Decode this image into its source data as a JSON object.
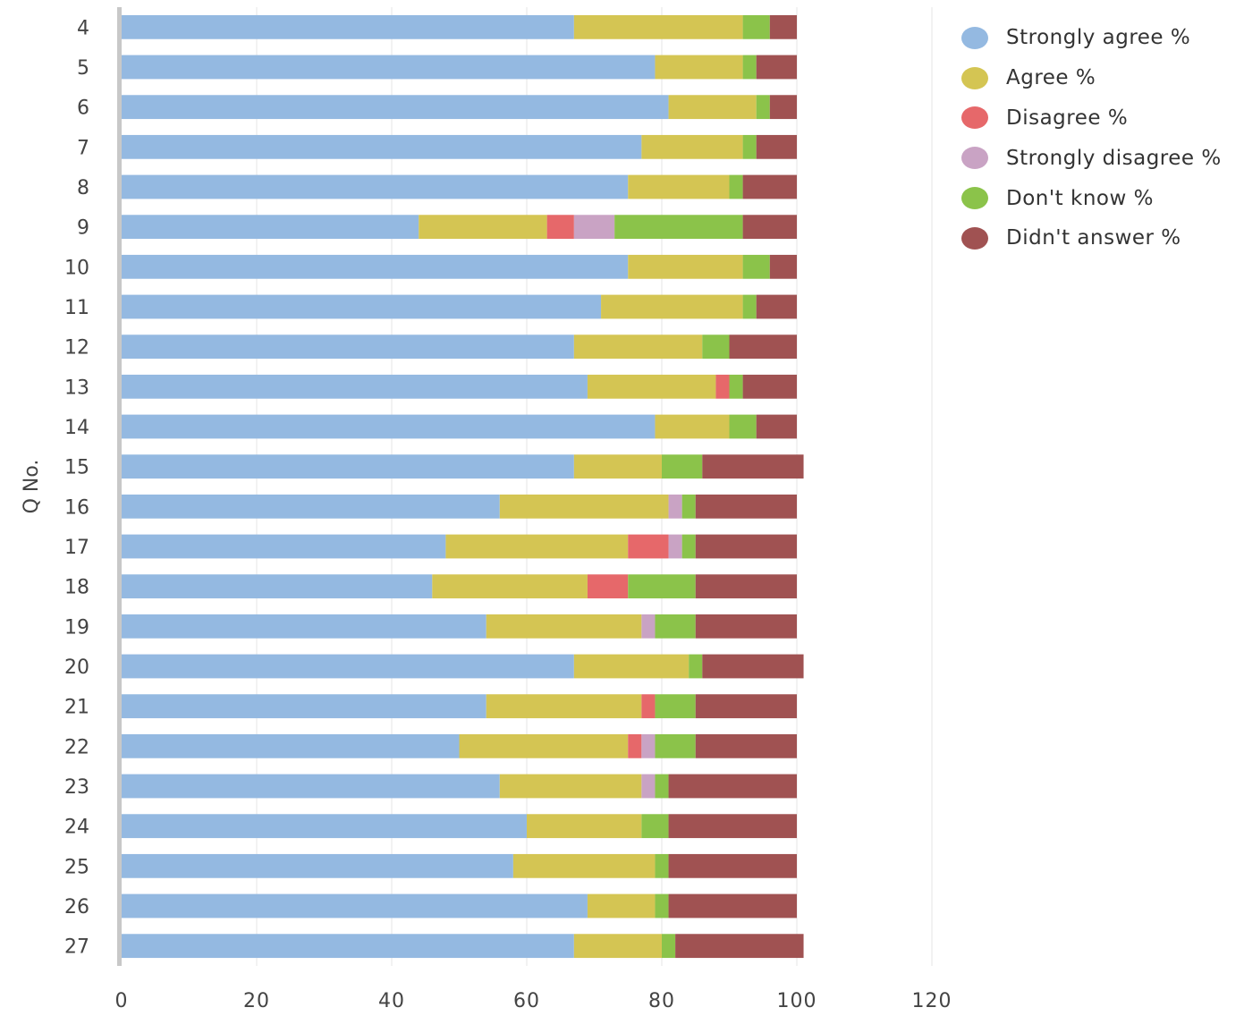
{
  "chart_data": {
    "type": "bar",
    "orientation": "horizontal",
    "stacked": true,
    "ylabel": "Q No.",
    "xlabel": "",
    "xlim": [
      0,
      120
    ],
    "xticks": [
      0,
      20,
      40,
      60,
      80,
      100,
      120
    ],
    "grid": true,
    "legend_position": "right",
    "categories": [
      "4",
      "5",
      "6",
      "7",
      "8",
      "9",
      "10",
      "11",
      "12",
      "13",
      "14",
      "15",
      "16",
      "17",
      "18",
      "19",
      "20",
      "21",
      "22",
      "23",
      "24",
      "25",
      "26",
      "27"
    ],
    "series": [
      {
        "name": "Strongly agree %",
        "color": "#94b9e1",
        "values": [
          67,
          79,
          81,
          77,
          75,
          44,
          75,
          71,
          67,
          69,
          79,
          67,
          56,
          48,
          46,
          54,
          67,
          54,
          50,
          56,
          60,
          58,
          69,
          67
        ]
      },
      {
        "name": "Agree %",
        "color": "#d4c553",
        "values": [
          25,
          13,
          13,
          15,
          15,
          19,
          17,
          21,
          19,
          19,
          11,
          13,
          25,
          27,
          23,
          23,
          17,
          23,
          25,
          21,
          17,
          21,
          10,
          13
        ]
      },
      {
        "name": "Disagree %",
        "color": "#e6686a",
        "values": [
          0,
          0,
          0,
          0,
          0,
          4,
          0,
          0,
          0,
          2,
          0,
          0,
          0,
          6,
          6,
          0,
          0,
          2,
          2,
          0,
          0,
          0,
          0,
          0
        ]
      },
      {
        "name": "Strongly disagree %",
        "color": "#c9a3c4",
        "values": [
          0,
          0,
          0,
          0,
          0,
          6,
          0,
          0,
          0,
          0,
          0,
          0,
          2,
          2,
          0,
          2,
          0,
          0,
          2,
          2,
          0,
          0,
          0,
          0
        ]
      },
      {
        "name": "Don't know %",
        "color": "#8bc34a",
        "values": [
          4,
          2,
          2,
          2,
          2,
          19,
          4,
          2,
          4,
          2,
          4,
          6,
          2,
          2,
          10,
          6,
          2,
          6,
          6,
          2,
          4,
          2,
          2,
          2
        ]
      },
      {
        "name": "Didn't answer %",
        "color": "#a05252",
        "values": [
          4,
          6,
          4,
          6,
          8,
          8,
          4,
          6,
          10,
          8,
          6,
          15,
          15,
          15,
          15,
          15,
          15,
          15,
          15,
          19,
          19,
          19,
          19,
          19
        ]
      }
    ]
  }
}
